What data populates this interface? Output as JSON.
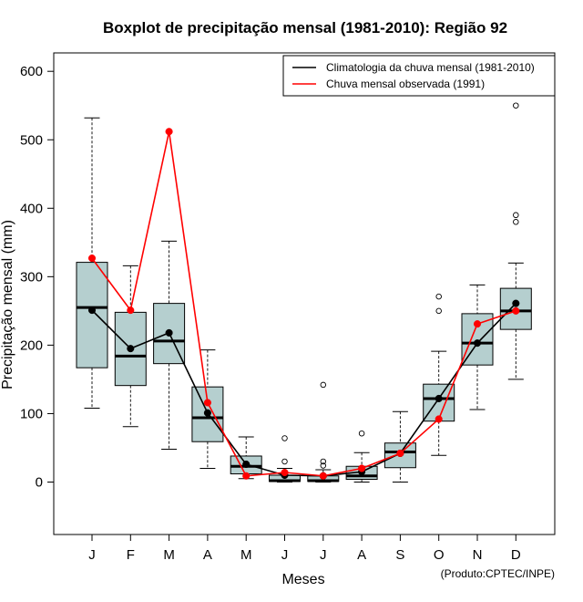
{
  "chart_data": {
    "type": "boxplot",
    "title": "Boxplot de precipitação mensal (1981-2010): Região 92",
    "xlabel": "Meses",
    "ylabel": "Precipitação mensal (mm)",
    "ylim": [
      -75,
      630
    ],
    "yticks": [
      0,
      100,
      200,
      300,
      400,
      500,
      600
    ],
    "categories": [
      "J",
      "F",
      "M",
      "A",
      "M",
      "J",
      "J",
      "A",
      "S",
      "O",
      "N",
      "D"
    ],
    "boxes": [
      {
        "whisker_low": 108,
        "q1": 167,
        "median": 255,
        "q3": 321,
        "whisker_high": 532,
        "outliers": []
      },
      {
        "whisker_low": 81,
        "q1": 141,
        "median": 184,
        "q3": 248,
        "whisker_high": 316,
        "outliers": []
      },
      {
        "whisker_low": 48,
        "q1": 173,
        "median": 206,
        "q3": 261,
        "whisker_high": 352,
        "outliers": []
      },
      {
        "whisker_low": 20,
        "q1": 59,
        "median": 94,
        "q3": 139,
        "whisker_high": 193,
        "outliers": []
      },
      {
        "whisker_low": 5,
        "q1": 12,
        "median": 23,
        "q3": 38,
        "whisker_high": 66,
        "outliers": []
      },
      {
        "whisker_low": 0,
        "q1": 1,
        "median": 2,
        "q3": 10,
        "whisker_high": 20,
        "outliers": [
          64,
          30
        ]
      },
      {
        "whisker_low": 0,
        "q1": 1,
        "median": 2,
        "q3": 9,
        "whisker_high": 18,
        "outliers": [
          142,
          30,
          24
        ]
      },
      {
        "whisker_low": 0,
        "q1": 4,
        "median": 9,
        "q3": 23,
        "whisker_high": 43,
        "outliers": [
          71
        ]
      },
      {
        "whisker_low": 0,
        "q1": 21,
        "median": 44,
        "q3": 57,
        "whisker_high": 103,
        "outliers": []
      },
      {
        "whisker_low": 39,
        "q1": 89,
        "median": 122,
        "q3": 143,
        "whisker_high": 191,
        "outliers": [
          271,
          250
        ]
      },
      {
        "whisker_low": 106,
        "q1": 171,
        "median": 203,
        "q3": 246,
        "whisker_high": 288,
        "outliers": []
      },
      {
        "whisker_low": 150,
        "q1": 223,
        "median": 250,
        "q3": 283,
        "whisker_high": 320,
        "outliers": [
          550,
          390,
          380
        ]
      }
    ],
    "series": [
      {
        "name": "Climatologia da chuva mensal (1981-2010)",
        "color": "#000000",
        "values": [
          251,
          195,
          218,
          101,
          26,
          10,
          9,
          15,
          42,
          122,
          203,
          261
        ]
      },
      {
        "name": "Chuva mensal observada (1991)",
        "color": "#ff0000",
        "values": [
          327,
          251,
          512,
          116,
          9,
          14,
          9,
          20,
          42,
          92,
          231,
          250
        ]
      }
    ],
    "box_fill": "#b5cfcf",
    "credit": "(Produto:CPTEC/INPE)"
  }
}
